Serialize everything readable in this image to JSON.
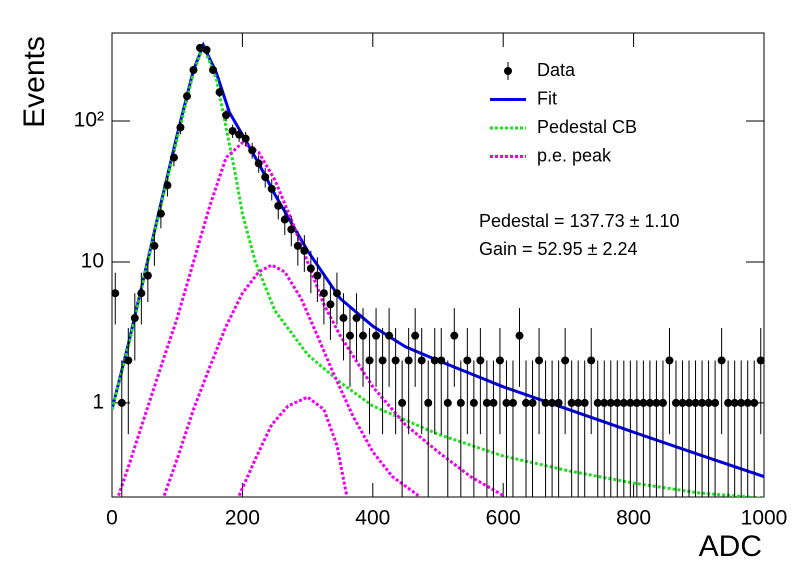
{
  "chart_data": {
    "type": "scatter",
    "xlabel": "ADC",
    "ylabel": "Events",
    "log_y": true,
    "legend": "top-right",
    "xlim": [
      0,
      1000
    ],
    "xticks": [
      0,
      200,
      400,
      600,
      800,
      1000
    ],
    "ylim": [
      0.215,
      421
    ],
    "yticks": [
      1,
      10,
      {
        "value": 100,
        "label": "10²"
      }
    ],
    "annotations": [
      "Pedestal = 137.73 ± 1.10",
      "Gain = 52.95 ± 2.24"
    ],
    "series": [
      {
        "name": "Data",
        "type": "errorbar",
        "color": "#000000",
        "x": [
          5,
          15,
          25,
          35,
          45,
          55,
          65,
          75,
          85,
          95,
          105,
          115,
          125,
          135,
          145,
          155,
          165,
          175,
          185,
          195,
          205,
          215,
          225,
          235,
          245,
          255,
          265,
          275,
          285,
          295,
          305,
          315,
          325,
          335,
          345,
          355,
          365,
          375,
          385,
          395,
          405,
          415,
          425,
          435,
          445,
          455,
          465,
          475,
          485,
          495,
          505,
          515,
          525,
          535,
          545,
          555,
          565,
          575,
          585,
          595,
          605,
          615,
          625,
          635,
          645,
          655,
          665,
          675,
          685,
          695,
          705,
          715,
          725,
          735,
          745,
          755,
          765,
          775,
          785,
          795,
          805,
          815,
          825,
          835,
          845,
          855,
          865,
          875,
          885,
          895,
          905,
          915,
          925,
          935,
          945,
          955,
          965,
          975,
          985,
          995
        ],
        "values": [
          6,
          1,
          2,
          4,
          6,
          8,
          13,
          22,
          35,
          55,
          90,
          150,
          230,
          330,
          320,
          230,
          160,
          110,
          85,
          80,
          75,
          62,
          50,
          40,
          33,
          25,
          20,
          17,
          13,
          12,
          9,
          8,
          6,
          5,
          6,
          4,
          3,
          4,
          3,
          2,
          3,
          2,
          3,
          2,
          1,
          2,
          3,
          2,
          1,
          2,
          2,
          1,
          3,
          1,
          2,
          1,
          2,
          1,
          1,
          2,
          1,
          1,
          3,
          1,
          1,
          2,
          1,
          1,
          1,
          2,
          1,
          1,
          1,
          2,
          1,
          1,
          1,
          1,
          1,
          1,
          1,
          1,
          1,
          1,
          1,
          2,
          1,
          1,
          1,
          1,
          1,
          1,
          1,
          2,
          1,
          1,
          1,
          1,
          1,
          2
        ],
        "errors": [
          2.4,
          1,
          1.4,
          2,
          2.4,
          2.8,
          3.6,
          4.7,
          5.9,
          7.4,
          9.5,
          12.2,
          15.2,
          18.2,
          17.9,
          15.2,
          12.6,
          10.5,
          9.2,
          8.9,
          8.7,
          7.9,
          7.1,
          6.3,
          5.7,
          5,
          4.5,
          4.1,
          3.6,
          3.5,
          3,
          2.8,
          2.4,
          2.2,
          2.4,
          2,
          1.7,
          2,
          1.7,
          1.4,
          1.7,
          1.4,
          1.7,
          1.4,
          1,
          1.4,
          1.7,
          1.4,
          1,
          1.4,
          1.4,
          1,
          1.7,
          1,
          1.4,
          1,
          1.4,
          1,
          1,
          1.4,
          1,
          1,
          1.7,
          1,
          1,
          1.4,
          1,
          1,
          1,
          1.4,
          1,
          1,
          1,
          1.4,
          1,
          1,
          1,
          1,
          1,
          1,
          1,
          1,
          1,
          1,
          1,
          1.4,
          1,
          1,
          1,
          1,
          1,
          1,
          1,
          1.4,
          1,
          1,
          1,
          1,
          1,
          1.4
        ]
      },
      {
        "name": "Fit",
        "type": "line",
        "color": "#0000ee",
        "dashed": false,
        "x": [
          0,
          25,
          50,
          75,
          100,
          125,
          140,
          160,
          180,
          200,
          225,
          250,
          275,
          300,
          350,
          400,
          450,
          500,
          600,
          700,
          800,
          900,
          1000
        ],
        "values": [
          0.9,
          2.6,
          8.2,
          26,
          80,
          230,
          345,
          220,
          115,
          80,
          50,
          30,
          19,
          12,
          5.5,
          3.5,
          2.5,
          2,
          1.3,
          0.9,
          0.62,
          0.43,
          0.3
        ]
      },
      {
        "name": "Pedestal CB",
        "type": "line",
        "color": "#22dd22",
        "dashed": true,
        "x": [
          0,
          25,
          50,
          75,
          100,
          125,
          140,
          160,
          175,
          190,
          200,
          220,
          250,
          300,
          350,
          400,
          500,
          600,
          700,
          800,
          900,
          1000
        ],
        "values": [
          0.9,
          2.5,
          8,
          25,
          75,
          220,
          340,
          200,
          90,
          40,
          22,
          10,
          4.5,
          2.2,
          1.4,
          0.95,
          0.6,
          0.42,
          0.33,
          0.27,
          0.23,
          0.21
        ]
      },
      {
        "name": "p.e. peak",
        "type": "line",
        "color": "#ee00ee",
        "dashed": true,
        "x": [
          10,
          25,
          50,
          75,
          100,
          125,
          150,
          175,
          200,
          225,
          250,
          275,
          300,
          325,
          350,
          400,
          450,
          500,
          550,
          600
        ],
        "values": [
          0.22,
          0.35,
          0.8,
          1.8,
          4,
          10,
          25,
          55,
          70,
          60,
          38,
          20,
          10,
          5,
          3,
          1.3,
          0.7,
          0.45,
          0.3,
          0.22
        ]
      },
      {
        "type": "line",
        "color": "#ee00ee",
        "dashed": true,
        "x": [
          80,
          100,
          125,
          150,
          175,
          200,
          225,
          245,
          265,
          290,
          315,
          340,
          370,
          400,
          430,
          470
        ],
        "values": [
          0.22,
          0.4,
          0.9,
          1.8,
          3.5,
          6,
          8.5,
          9.5,
          8.5,
          5.5,
          3,
          1.6,
          0.8,
          0.45,
          0.3,
          0.22
        ]
      },
      {
        "type": "line",
        "color": "#ee00ee",
        "dashed": true,
        "x": [
          195,
          220,
          245,
          270,
          300,
          325,
          345,
          360
        ],
        "values": [
          0.22,
          0.4,
          0.7,
          0.95,
          1.1,
          0.9,
          0.5,
          0.22
        ]
      }
    ]
  }
}
